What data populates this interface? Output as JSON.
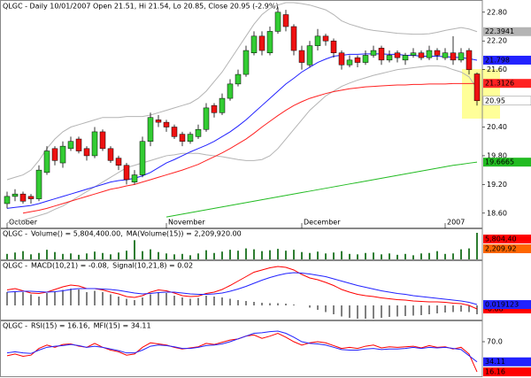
{
  "chart_data": [
    {
      "type": "candlestick",
      "title": "QLGC - Daily 10/01/2007 Open 21.51, Hi 21.54, Lo 20.85, Close 20.95 (-2.9%)",
      "categories": [
        "October",
        null,
        null,
        null,
        null,
        null,
        null,
        null,
        null,
        null,
        null,
        null,
        null,
        null,
        null,
        null,
        null,
        null,
        null,
        null,
        "November",
        null,
        null,
        null,
        null,
        null,
        null,
        null,
        null,
        null,
        null,
        null,
        null,
        null,
        null,
        null,
        null,
        "December",
        null,
        null,
        null,
        null,
        null,
        null,
        null,
        null,
        null,
        null,
        null,
        null,
        null,
        null,
        null,
        null,
        null,
        "2007",
        null,
        null,
        null,
        null
      ],
      "open": [
        18.8,
        18.95,
        19.0,
        18.95,
        18.9,
        19.45,
        19.95,
        19.65,
        19.95,
        20.15,
        19.95,
        19.8,
        20.3,
        19.95,
        19.75,
        19.6,
        19.25,
        19.4,
        20.1,
        20.55,
        20.5,
        20.4,
        20.25,
        20.1,
        20.2,
        20.35,
        20.85,
        20.7,
        21.0,
        21.3,
        21.5,
        21.95,
        22.3,
        21.95,
        22.4,
        22.75,
        22.5,
        22.0,
        21.7,
        22.1,
        22.3,
        22.2,
        21.95,
        21.7,
        21.85,
        21.75,
        21.9,
        22.05,
        21.8,
        21.95,
        21.8,
        21.9,
        21.95,
        21.85,
        22.0,
        21.85,
        21.95,
        21.8,
        22.0,
        21.51
      ],
      "high": [
        19.05,
        19.1,
        19.05,
        19.0,
        19.6,
        20.0,
        20.0,
        20.1,
        20.2,
        20.2,
        20.0,
        20.4,
        20.35,
        20.0,
        19.8,
        19.65,
        19.5,
        20.2,
        20.7,
        20.65,
        20.55,
        20.45,
        20.3,
        20.3,
        20.45,
        20.9,
        20.9,
        21.1,
        21.4,
        21.6,
        22.1,
        22.4,
        22.4,
        22.5,
        22.9,
        22.85,
        22.55,
        22.1,
        22.2,
        22.45,
        22.35,
        22.25,
        22.0,
        21.9,
        21.9,
        22.0,
        22.1,
        22.1,
        22.0,
        22.0,
        21.95,
        22.05,
        22.0,
        22.1,
        22.05,
        22.05,
        22.3,
        22.05,
        22.05,
        21.54
      ],
      "low": [
        18.7,
        18.85,
        18.8,
        18.8,
        18.85,
        19.4,
        19.6,
        19.55,
        19.9,
        19.85,
        19.7,
        19.75,
        19.9,
        19.65,
        19.5,
        19.2,
        19.2,
        19.35,
        20.0,
        20.4,
        20.3,
        20.15,
        20.0,
        20.05,
        20.15,
        20.3,
        20.6,
        20.65,
        20.95,
        21.25,
        21.45,
        21.9,
        21.9,
        21.9,
        22.35,
        22.4,
        21.9,
        21.6,
        21.65,
        22.0,
        22.1,
        21.85,
        21.6,
        21.65,
        21.65,
        21.7,
        21.85,
        21.7,
        21.75,
        21.75,
        21.7,
        21.85,
        21.8,
        21.8,
        21.8,
        21.8,
        21.7,
        21.75,
        21.5,
        20.85
      ],
      "close": [
        18.95,
        19.0,
        18.85,
        18.9,
        19.5,
        19.9,
        19.7,
        20.0,
        20.1,
        19.9,
        19.8,
        20.3,
        19.95,
        19.7,
        19.6,
        19.3,
        19.4,
        20.1,
        20.6,
        20.5,
        20.4,
        20.2,
        20.1,
        20.25,
        20.35,
        20.8,
        20.7,
        21.0,
        21.3,
        21.5,
        22.0,
        22.3,
        22.0,
        22.4,
        22.8,
        22.5,
        22.0,
        21.75,
        22.1,
        22.3,
        22.2,
        21.95,
        21.7,
        21.8,
        21.75,
        21.9,
        22.0,
        21.8,
        21.9,
        21.85,
        21.9,
        21.95,
        21.85,
        22.0,
        21.9,
        21.95,
        21.8,
        21.95,
        21.6,
        20.95
      ],
      "up_color": "#33cc33",
      "down_color": "#ee1111",
      "close_label": true,
      "ylim": [
        18.3,
        23.0
      ],
      "yticks": [
        {
          "value": 22.8,
          "label": "22.80"
        },
        {
          "value": 22.2,
          "label": "22.20"
        },
        {
          "value": 21.6,
          "label": "21.60"
        },
        {
          "value": 20.4,
          "label": "20.40"
        },
        {
          "value": 19.8,
          "label": "19.80"
        },
        {
          "value": 19.2,
          "label": "19.20"
        },
        {
          "value": 18.6,
          "label": "18.60"
        }
      ],
      "overlays": [
        {
          "color": "#b4b4b4",
          "last_label": true,
          "values": [
            19.3,
            19.35,
            19.4,
            19.5,
            19.7,
            19.95,
            20.15,
            20.3,
            20.4,
            20.45,
            20.5,
            20.55,
            20.6,
            20.6,
            20.6,
            20.62,
            20.62,
            20.62,
            20.65,
            20.7,
            20.75,
            20.8,
            20.85,
            20.9,
            21.0,
            21.15,
            21.35,
            21.55,
            21.8,
            22.05,
            22.3,
            22.55,
            22.75,
            22.88,
            22.95,
            23.0,
            23.0,
            22.98,
            22.95,
            22.9,
            22.85,
            22.75,
            22.62,
            22.55,
            22.5,
            22.45,
            22.42,
            22.4,
            22.38,
            22.36,
            22.35,
            22.34,
            22.34,
            22.35,
            22.38,
            22.42,
            22.45,
            22.48,
            22.45,
            22.3941
          ]
        },
        {
          "color": "#b4b4b4",
          "values": [
            18.4,
            18.42,
            18.45,
            18.5,
            18.55,
            18.6,
            18.68,
            18.75,
            18.85,
            18.95,
            19.05,
            19.15,
            19.25,
            19.35,
            19.45,
            19.55,
            19.6,
            19.65,
            19.7,
            19.75,
            19.8,
            19.82,
            19.85,
            19.85,
            19.85,
            19.82,
            19.8,
            19.78,
            19.75,
            19.72,
            19.7,
            19.7,
            19.72,
            19.8,
            19.95,
            20.15,
            20.35,
            20.55,
            20.75,
            20.9,
            21.05,
            21.15,
            21.25,
            21.32,
            21.38,
            21.43,
            21.48,
            21.52,
            21.56,
            21.6,
            21.62,
            21.64,
            21.66,
            21.68,
            21.68,
            21.66,
            21.6,
            21.55,
            21.45,
            21.2
          ]
        },
        {
          "color": "#2222ff",
          "last_label": true,
          "values": [
            18.7,
            18.72,
            18.74,
            18.76,
            18.8,
            18.85,
            18.9,
            18.95,
            19.0,
            19.05,
            19.1,
            19.15,
            19.2,
            19.25,
            19.28,
            19.3,
            19.33,
            19.38,
            19.45,
            19.55,
            19.65,
            19.72,
            19.8,
            19.88,
            19.95,
            20.02,
            20.1,
            20.2,
            20.3,
            20.42,
            20.55,
            20.7,
            20.85,
            21.0,
            21.15,
            21.3,
            21.42,
            21.55,
            21.65,
            21.75,
            21.82,
            21.88,
            21.9,
            21.92,
            21.92,
            21.93,
            21.93,
            21.93,
            21.92,
            21.92,
            21.9,
            21.9,
            21.88,
            21.88,
            21.88,
            21.87,
            21.86,
            21.85,
            21.83,
            21.798
          ]
        },
        {
          "color": "#ff2222",
          "last_label": true,
          "values": [
            null,
            null,
            18.6,
            18.63,
            18.66,
            18.7,
            18.75,
            18.8,
            18.85,
            18.9,
            18.95,
            19.0,
            19.05,
            19.1,
            19.13,
            19.17,
            19.2,
            19.25,
            19.3,
            19.35,
            19.4,
            19.45,
            19.5,
            19.56,
            19.62,
            19.7,
            19.78,
            19.86,
            19.95,
            20.05,
            20.15,
            20.27,
            20.4,
            20.52,
            20.64,
            20.75,
            20.85,
            20.93,
            21.0,
            21.05,
            21.1,
            21.14,
            21.17,
            21.2,
            21.22,
            21.24,
            21.25,
            21.26,
            21.27,
            21.28,
            21.28,
            21.29,
            21.29,
            21.3,
            21.3,
            21.3,
            21.31,
            21.31,
            21.31,
            21.3126
          ]
        },
        {
          "color": "#22bb22",
          "last_label": true,
          "values": [
            null,
            null,
            null,
            null,
            null,
            null,
            null,
            null,
            null,
            null,
            null,
            null,
            null,
            null,
            null,
            null,
            null,
            null,
            null,
            null,
            18.52,
            18.55,
            18.58,
            18.61,
            18.64,
            18.67,
            18.7,
            18.73,
            18.76,
            18.79,
            18.82,
            18.85,
            18.88,
            18.91,
            18.94,
            18.97,
            19.0,
            19.03,
            19.06,
            19.09,
            19.12,
            19.15,
            19.18,
            19.21,
            19.24,
            19.27,
            19.3,
            19.33,
            19.36,
            19.39,
            19.42,
            19.45,
            19.48,
            19.51,
            19.54,
            19.57,
            19.6,
            19.62,
            19.645,
            19.6665
          ]
        }
      ]
    },
    {
      "type": "bar",
      "prefix": "QLGC -",
      "ylim": [
        0,
        6000000
      ],
      "bar_color": "#2e7d32",
      "series": [
        {
          "name": "Volume() = 5,804,400.00,",
          "color": "#ff0000",
          "values": [
            1200000,
            1500000,
            1800000,
            1100000,
            1400000,
            2100000,
            1600000,
            1200000,
            1300000,
            1000000,
            1300000,
            1700000,
            1400000,
            1100000,
            1500000,
            1900000,
            4200000,
            1800000,
            2200000,
            1600000,
            1300000,
            1100000,
            1200000,
            900000,
            1300000,
            2000000,
            1400000,
            1700000,
            2100000,
            1900000,
            2400000,
            2200000,
            1800000,
            2000000,
            2300000,
            1900000,
            2100000,
            1600000,
            1400000,
            1700000,
            1300000,
            1500000,
            1800000,
            1200000,
            1100000,
            1400000,
            1500000,
            1100000,
            1300000,
            1000000,
            1200000,
            900000,
            1300000,
            1400000,
            1800000,
            1200000,
            1300000,
            2200000,
            2400000,
            5804400
          ]
        },
        {
          "name": "MA(Volume(15)) = 2,209,920.00",
          "color": "#ff3300"
        }
      ],
      "boxes": [
        {
          "label": "5,804,40",
          "color": "#ff0000"
        },
        {
          "label": "2,209,92",
          "color": "#ff6600"
        }
      ]
    },
    {
      "type": "macd",
      "prefix": "QLGC -",
      "ylim": [
        -0.3,
        0.9
      ],
      "series": [
        {
          "name": "MACD(10,21) = -0.08,",
          "color": "#ff0000",
          "last_label": true,
          "values": [
            0.35,
            0.38,
            0.33,
            0.28,
            0.27,
            0.3,
            0.36,
            0.42,
            0.46,
            0.44,
            0.38,
            0.38,
            0.35,
            0.3,
            0.26,
            0.2,
            0.18,
            0.22,
            0.3,
            0.35,
            0.33,
            0.28,
            0.22,
            0.2,
            0.21,
            0.27,
            0.3,
            0.36,
            0.45,
            0.55,
            0.65,
            0.75,
            0.8,
            0.85,
            0.88,
            0.86,
            0.8,
            0.7,
            0.62,
            0.58,
            0.52,
            0.45,
            0.36,
            0.3,
            0.25,
            0.22,
            0.2,
            0.17,
            0.15,
            0.13,
            0.12,
            0.1,
            0.09,
            0.08,
            0.08,
            0.07,
            0.05,
            0.04,
            0.0,
            -0.08
          ]
        },
        {
          "name": "Signal(10,21,8) = 0.02",
          "color": "#2222ff",
          "last_label": true,
          "values": [
            0.3,
            0.31,
            0.32,
            0.32,
            0.31,
            0.3,
            0.31,
            0.33,
            0.36,
            0.38,
            0.38,
            0.38,
            0.37,
            0.36,
            0.34,
            0.31,
            0.28,
            0.26,
            0.27,
            0.29,
            0.3,
            0.3,
            0.28,
            0.26,
            0.25,
            0.25,
            0.26,
            0.28,
            0.32,
            0.37,
            0.43,
            0.5,
            0.57,
            0.63,
            0.68,
            0.72,
            0.74,
            0.73,
            0.71,
            0.68,
            0.65,
            0.6,
            0.55,
            0.5,
            0.45,
            0.41,
            0.37,
            0.33,
            0.3,
            0.27,
            0.25,
            0.22,
            0.2,
            0.18,
            0.16,
            0.14,
            0.12,
            0.1,
            0.07,
            0.019123
          ]
        }
      ],
      "histogram": {
        "color": "#000000",
        "values": [
          0.3,
          0.32,
          0.3,
          0.25,
          0.2,
          0.28,
          0.32,
          0.35,
          0.38,
          0.36,
          0.3,
          0.33,
          0.3,
          0.25,
          0.2,
          0.15,
          0.12,
          0.18,
          0.25,
          0.3,
          0.28,
          0.22,
          0.18,
          0.15,
          0.17,
          0.22,
          0.2,
          0.18,
          0.15,
          0.12,
          0.1,
          0.08,
          0.06,
          0.05,
          0.05,
          0.04,
          0.02,
          0,
          -0.05,
          -0.1,
          -0.15,
          -0.2,
          -0.25,
          -0.28,
          -0.3,
          -0.3,
          -0.3,
          -0.28,
          -0.26,
          -0.25,
          -0.24,
          -0.23,
          -0.22,
          -0.2,
          -0.18,
          -0.16,
          -0.15,
          -0.14,
          -0.15,
          -0.2
        ]
      }
    },
    {
      "type": "line",
      "prefix": "QLGC -",
      "ylim": [
        10,
        100
      ],
      "yticks": [
        {
          "value": 70,
          "label": "70.0"
        }
      ],
      "series": [
        {
          "name": "RSI(15) = 16.16,",
          "color": "#ff0000",
          "last_label": true,
          "values": [
            45,
            48,
            44,
            46,
            58,
            64,
            60,
            65,
            66,
            62,
            60,
            67,
            60,
            55,
            52,
            46,
            48,
            60,
            68,
            66,
            64,
            60,
            57,
            59,
            61,
            67,
            65,
            69,
            73,
            75,
            80,
            82,
            76,
            80,
            85,
            78,
            70,
            64,
            68,
            70,
            68,
            63,
            58,
            60,
            58,
            62,
            64,
            59,
            61,
            60,
            61,
            62,
            59,
            63,
            60,
            61,
            57,
            60,
            48,
            16.16
          ]
        },
        {
          "name": "MFI(15) = 34.11",
          "color": "#2222ff",
          "last_label": true,
          "values": [
            50,
            52,
            50,
            49,
            55,
            60,
            62,
            63,
            65,
            63,
            60,
            62,
            60,
            57,
            54,
            50,
            50,
            55,
            62,
            64,
            63,
            61,
            58,
            58,
            60,
            63,
            64,
            66,
            70,
            75,
            80,
            85,
            86,
            88,
            89,
            85,
            78,
            70,
            67,
            66,
            64,
            60,
            56,
            55,
            55,
            57,
            58,
            56,
            57,
            57,
            58,
            60,
            58,
            60,
            59,
            60,
            58,
            56,
            45,
            34.11
          ]
        }
      ]
    }
  ]
}
